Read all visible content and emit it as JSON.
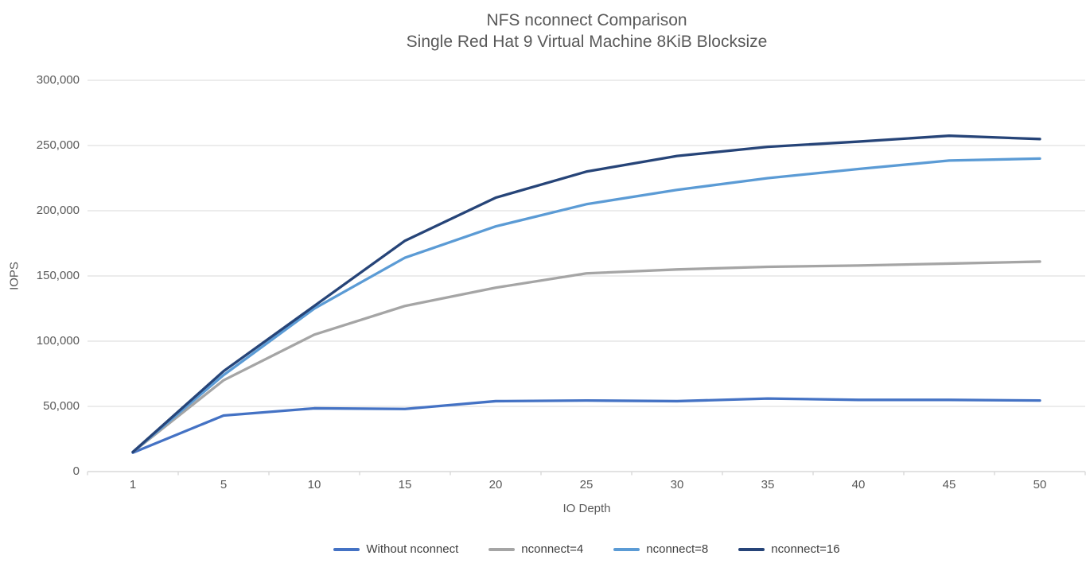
{
  "title": {
    "line1": "NFS nconnect Comparison",
    "line2": "Single Red Hat 9 Virtual Machine 8KiB Blocksize"
  },
  "chart_data": {
    "type": "line",
    "title": "NFS nconnect Comparison",
    "subtitle": "Single Red Hat 9 Virtual Machine 8KiB Blocksize",
    "xlabel": "IO Depth",
    "ylabel": "IOPS",
    "categories": [
      "1",
      "5",
      "10",
      "15",
      "20",
      "25",
      "30",
      "35",
      "40",
      "45",
      "50"
    ],
    "ylim": [
      0,
      300000
    ],
    "y_ticks": [
      0,
      50000,
      100000,
      150000,
      200000,
      250000,
      300000
    ],
    "y_tick_labels": [
      "0",
      "50,000",
      "100,000",
      "150,000",
      "200,000",
      "250,000",
      "300,000"
    ],
    "grid": "horizontal",
    "grid_color": "#d9d9d9",
    "axis_color": "#d9d9d9",
    "text_color": "#595959",
    "legend_position": "bottom",
    "series": [
      {
        "name": "Without nconnect",
        "color": "#4472C4",
        "values": [
          14500,
          43000,
          48500,
          48000,
          54000,
          54500,
          54000,
          56000,
          55000,
          55000,
          54500
        ]
      },
      {
        "name": "nconnect=4",
        "color": "#A5A5A5",
        "values": [
          15000,
          70000,
          105000,
          127000,
          141000,
          152000,
          155000,
          157000,
          158000,
          159500,
          161000
        ]
      },
      {
        "name": "nconnect=8",
        "color": "#5B9BD5",
        "values": [
          15000,
          74000,
          125000,
          164000,
          188000,
          205000,
          216000,
          225000,
          232000,
          238500,
          240000
        ]
      },
      {
        "name": "nconnect=16",
        "color": "#264478",
        "values": [
          15000,
          77000,
          127000,
          177000,
          210000,
          230000,
          242000,
          249000,
          253000,
          257500,
          255000
        ]
      }
    ]
  }
}
